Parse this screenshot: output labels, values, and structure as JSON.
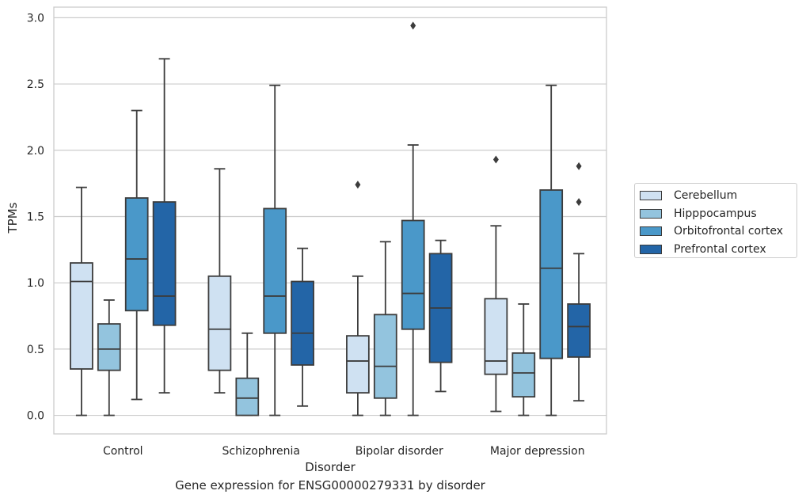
{
  "chart_data": {
    "type": "box",
    "title": "",
    "caption": "Gene expression for ENSG00000279331 by disorder",
    "xlabel": "Disorder",
    "ylabel": "TPMs",
    "ylim": [
      -0.14,
      3.08
    ],
    "yticks": [
      "0.0",
      "0.5",
      "1.0",
      "1.5",
      "2.0",
      "2.5",
      "3.0"
    ],
    "grid": "horizontal",
    "legend_position": "right, outside plot",
    "categories": [
      "Control",
      "Schizophrenia",
      "Bipolar disorder",
      "Major depression"
    ],
    "series": [
      {
        "name": "Cerebellum",
        "color": "#cfe1f2",
        "boxes": [
          {
            "whisker_low": 0.0,
            "q1": 0.35,
            "median": 1.01,
            "q3": 1.15,
            "whisker_high": 1.72,
            "outliers": []
          },
          {
            "whisker_low": 0.17,
            "q1": 0.34,
            "median": 0.65,
            "q3": 1.05,
            "whisker_high": 1.86,
            "outliers": []
          },
          {
            "whisker_low": 0.0,
            "q1": 0.17,
            "median": 0.41,
            "q3": 0.6,
            "whisker_high": 1.05,
            "outliers": [
              1.74
            ]
          },
          {
            "whisker_low": 0.03,
            "q1": 0.31,
            "median": 0.41,
            "q3": 0.88,
            "whisker_high": 1.43,
            "outliers": [
              1.93
            ]
          }
        ]
      },
      {
        "name": "Hipppocampus",
        "color": "#93c4de",
        "boxes": [
          {
            "whisker_low": 0.0,
            "q1": 0.34,
            "median": 0.5,
            "q3": 0.69,
            "whisker_high": 0.87,
            "outliers": []
          },
          {
            "whisker_low": 0.0,
            "q1": 0.0,
            "median": 0.13,
            "q3": 0.28,
            "whisker_high": 0.62,
            "outliers": []
          },
          {
            "whisker_low": 0.0,
            "q1": 0.13,
            "median": 0.37,
            "q3": 0.76,
            "whisker_high": 1.31,
            "outliers": []
          },
          {
            "whisker_low": 0.0,
            "q1": 0.14,
            "median": 0.32,
            "q3": 0.47,
            "whisker_high": 0.84,
            "outliers": []
          }
        ]
      },
      {
        "name": "Orbitofrontal cortex",
        "color": "#4a98c9",
        "boxes": [
          {
            "whisker_low": 0.12,
            "q1": 0.79,
            "median": 1.18,
            "q3": 1.64,
            "whisker_high": 2.3,
            "outliers": []
          },
          {
            "whisker_low": 0.0,
            "q1": 0.62,
            "median": 0.9,
            "q3": 1.56,
            "whisker_high": 2.49,
            "outliers": []
          },
          {
            "whisker_low": 0.0,
            "q1": 0.65,
            "median": 0.92,
            "q3": 1.47,
            "whisker_high": 2.04,
            "outliers": [
              2.94
            ]
          },
          {
            "whisker_low": 0.0,
            "q1": 0.43,
            "median": 1.11,
            "q3": 1.7,
            "whisker_high": 2.49,
            "outliers": []
          }
        ]
      },
      {
        "name": "Prefrontal cortex",
        "color": "#2365a7",
        "boxes": [
          {
            "whisker_low": 0.17,
            "q1": 0.68,
            "median": 0.9,
            "q3": 1.61,
            "whisker_high": 2.69,
            "outliers": []
          },
          {
            "whisker_low": 0.07,
            "q1": 0.38,
            "median": 0.62,
            "q3": 1.01,
            "whisker_high": 1.26,
            "outliers": []
          },
          {
            "whisker_low": 0.18,
            "q1": 0.4,
            "median": 0.81,
            "q3": 1.22,
            "whisker_high": 1.32,
            "outliers": []
          },
          {
            "whisker_low": 0.11,
            "q1": 0.44,
            "median": 0.67,
            "q3": 0.84,
            "whisker_high": 1.22,
            "outliers": [
              1.61,
              1.88
            ]
          }
        ]
      }
    ]
  }
}
